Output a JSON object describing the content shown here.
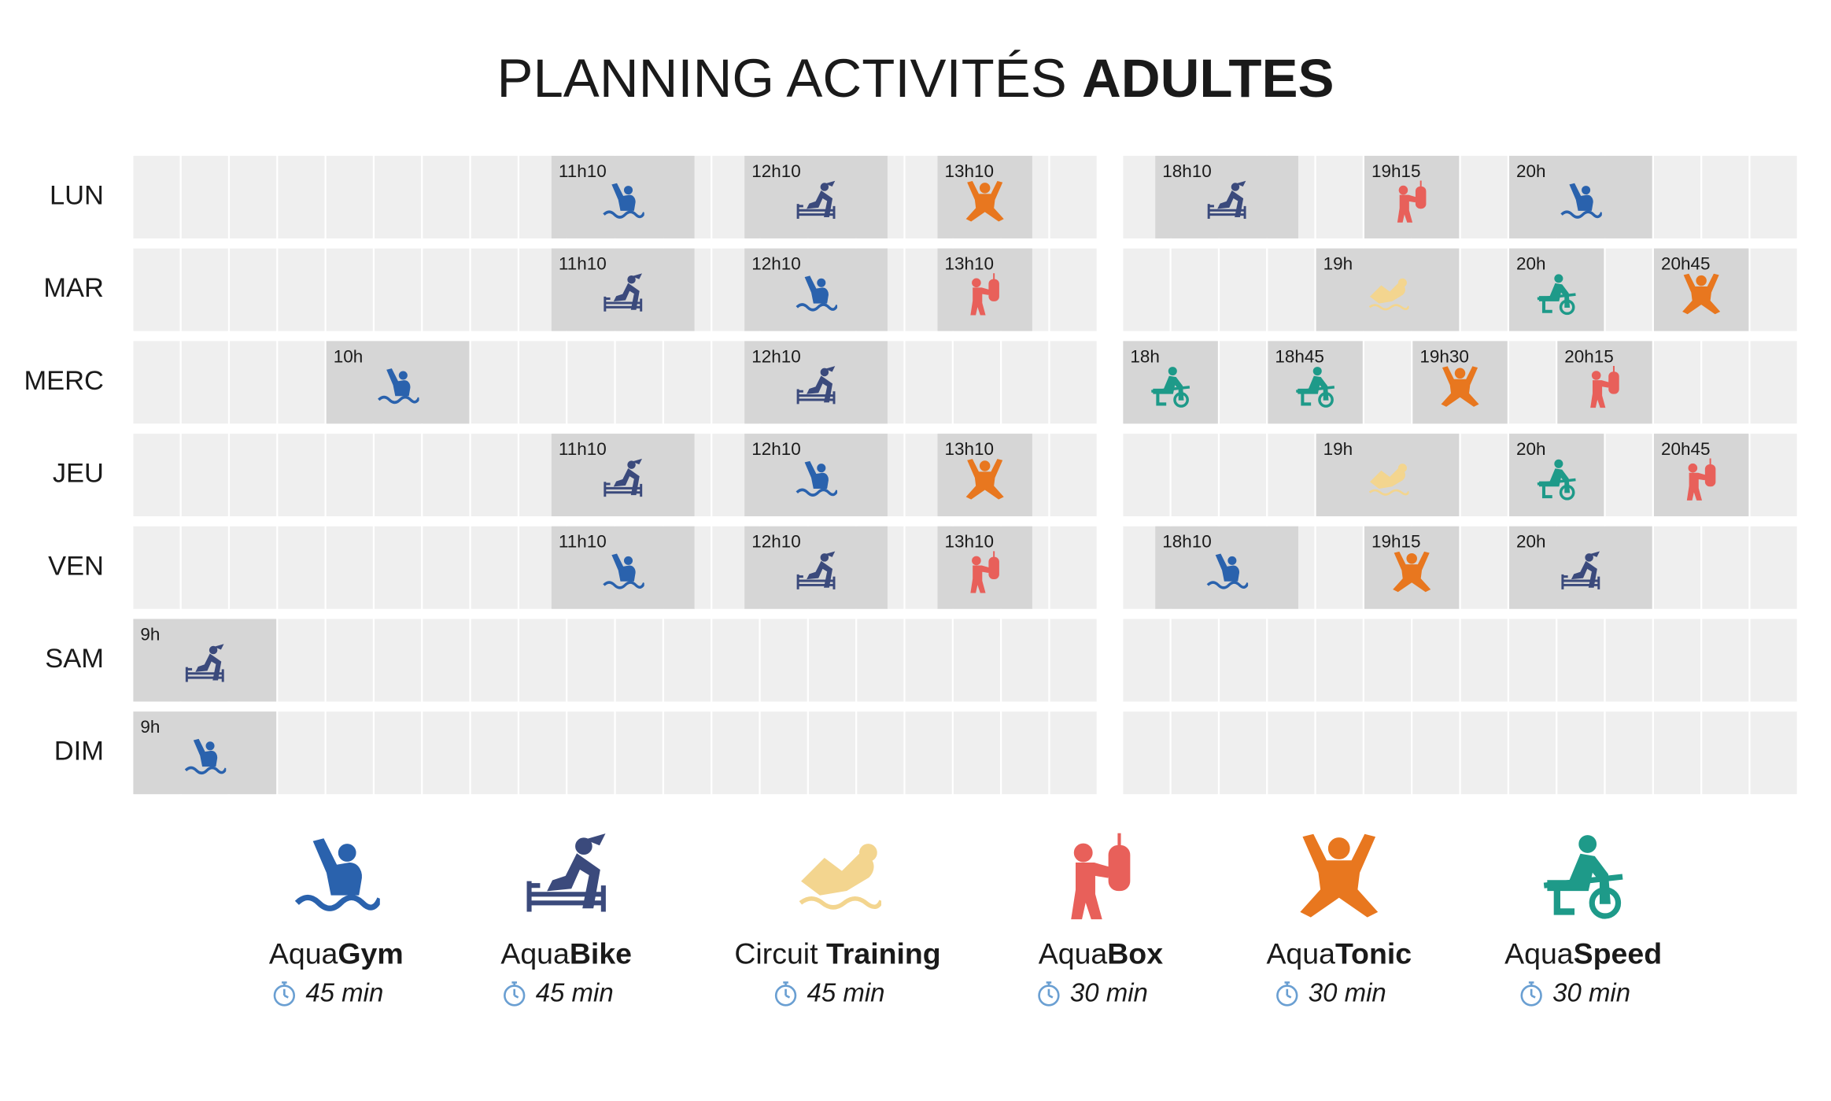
{
  "header": {
    "title": "PLANNING ACTIVITÉS ",
    "title_bold": "ADULTES"
  },
  "activities": [
    {
      "key": "gym",
      "name": "Aqua",
      "name_bold": "Gym",
      "duration": "45 min",
      "color": "#2a62ad"
    },
    {
      "key": "bike",
      "name": "Aqua",
      "name_bold": "Bike",
      "duration": "45 min",
      "color": "#3b4a7c"
    },
    {
      "key": "circuit",
      "name": "Circuit ",
      "name_bold": "Training",
      "duration": "45 min",
      "color": "#f3d58f"
    },
    {
      "key": "box",
      "name": "Aqua",
      "name_bold": "Box",
      "duration": "30 min",
      "color": "#e8605a"
    },
    {
      "key": "tonic",
      "name": "Aqua",
      "name_bold": "Tonic",
      "duration": "30 min",
      "color": "#e8771f"
    },
    {
      "key": "speed",
      "name": "Aqua",
      "name_bold": "Speed",
      "duration": "30 min",
      "color": "#1e9a89"
    }
  ],
  "days": [
    {
      "label": "LUN",
      "sessions": [
        {
          "time": "11h10",
          "activity": "gym"
        },
        {
          "time": "12h10",
          "activity": "bike"
        },
        {
          "time": "13h10",
          "activity": "tonic"
        },
        {
          "time": "18h10",
          "activity": "bike"
        },
        {
          "time": "19h15",
          "activity": "box"
        },
        {
          "time": "20h",
          "activity": "gym"
        }
      ]
    },
    {
      "label": "MAR",
      "sessions": [
        {
          "time": "11h10",
          "activity": "bike"
        },
        {
          "time": "12h10",
          "activity": "gym"
        },
        {
          "time": "13h10",
          "activity": "box"
        },
        {
          "time": "19h",
          "activity": "circuit"
        },
        {
          "time": "20h",
          "activity": "speed"
        },
        {
          "time": "20h45",
          "activity": "tonic"
        }
      ]
    },
    {
      "label": "MERC",
      "sessions": [
        {
          "time": "10h",
          "activity": "gym"
        },
        {
          "time": "12h10",
          "activity": "bike"
        },
        {
          "time": "18h",
          "activity": "speed"
        },
        {
          "time": "18h45",
          "activity": "speed"
        },
        {
          "time": "19h30",
          "activity": "tonic"
        },
        {
          "time": "20h15",
          "activity": "box"
        }
      ]
    },
    {
      "label": "JEU",
      "sessions": [
        {
          "time": "11h10",
          "activity": "bike"
        },
        {
          "time": "12h10",
          "activity": "gym"
        },
        {
          "time": "13h10",
          "activity": "tonic"
        },
        {
          "time": "19h",
          "activity": "circuit"
        },
        {
          "time": "20h",
          "activity": "speed"
        },
        {
          "time": "20h45",
          "activity": "box"
        }
      ]
    },
    {
      "label": "VEN",
      "sessions": [
        {
          "time": "11h10",
          "activity": "gym"
        },
        {
          "time": "12h10",
          "activity": "bike"
        },
        {
          "time": "13h10",
          "activity": "box"
        },
        {
          "time": "18h10",
          "activity": "gym"
        },
        {
          "time": "19h15",
          "activity": "tonic"
        },
        {
          "time": "20h",
          "activity": "bike"
        }
      ]
    },
    {
      "label": "SAM",
      "sessions": [
        {
          "time": "9h",
          "activity": "bike"
        }
      ]
    },
    {
      "label": "DIM",
      "sessions": [
        {
          "time": "9h",
          "activity": "gym"
        }
      ]
    }
  ]
}
